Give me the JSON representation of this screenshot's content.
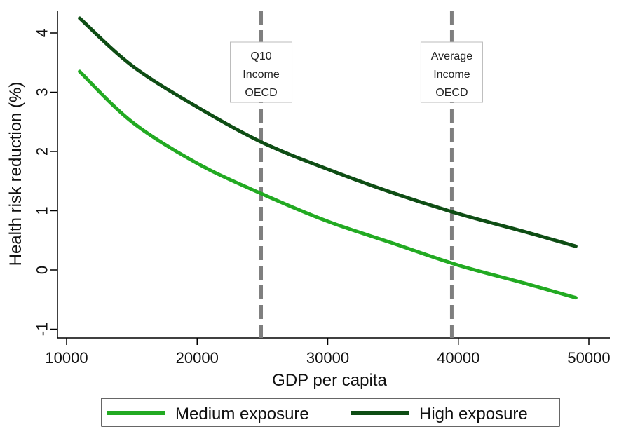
{
  "chart_data": {
    "type": "line",
    "xlabel": "GDP per capita",
    "ylabel": "Health risk reduction (%)",
    "xlim": [
      10000,
      50000
    ],
    "ylim": [
      -1,
      4.2
    ],
    "xticks": [
      10000,
      20000,
      30000,
      40000,
      50000
    ],
    "xtick_labels": [
      "10000",
      "20000",
      "30000",
      "40000",
      "50000"
    ],
    "yticks": [
      -1,
      0,
      1,
      2,
      3,
      4
    ],
    "ytick_labels": [
      "-1",
      "0",
      "1",
      "2",
      "3",
      "4"
    ],
    "grid": false,
    "legend_position": "bottom",
    "series": [
      {
        "name": "Medium exposure",
        "color": "#22aa22",
        "x": [
          11000,
          15000,
          20000,
          25000,
          30000,
          35000,
          40000,
          45000,
          49000
        ],
        "y": [
          3.35,
          2.5,
          1.8,
          1.28,
          0.82,
          0.45,
          0.08,
          -0.22,
          -0.47
        ]
      },
      {
        "name": "High exposure",
        "color": "#0e4d14",
        "x": [
          11000,
          15000,
          20000,
          25000,
          30000,
          35000,
          40000,
          45000,
          49000
        ],
        "y": [
          4.25,
          3.45,
          2.75,
          2.15,
          1.7,
          1.3,
          0.95,
          0.65,
          0.4
        ]
      }
    ],
    "reference_lines": [
      {
        "x": 24900,
        "label_lines": [
          "Q10",
          "Income",
          "OECD"
        ]
      },
      {
        "x": 39500,
        "label_lines": [
          "Average",
          "Income",
          "OECD"
        ]
      }
    ],
    "reference_line_color": "#7f7f7f"
  }
}
